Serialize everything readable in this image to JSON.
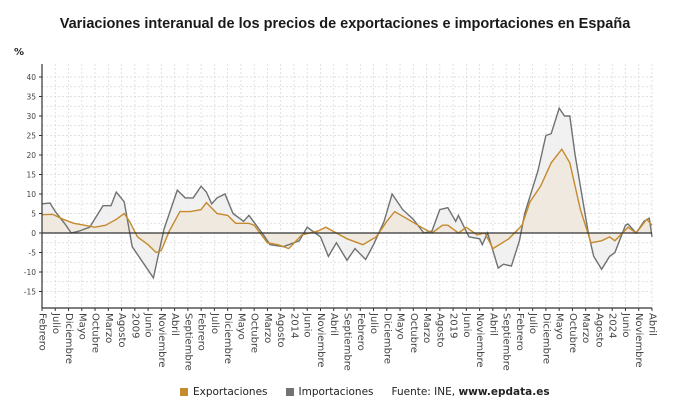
{
  "title": "Variaciones interanual de los precios de exportaciones e importaciones en España",
  "legend": {
    "source_prefix": "Fuente: INE, ",
    "source_site": "www.epdata.es"
  },
  "chart_data": {
    "type": "area",
    "title": "Variaciones interanual de los precios de exportaciones e importaciones en España",
    "ylabel": "%",
    "ylim": [
      -18,
      43
    ],
    "yticks": [
      40,
      35,
      30,
      25,
      20,
      15,
      10,
      5,
      0,
      -5,
      -10,
      -15
    ],
    "xlim": [
      "2006-02",
      "2025-04"
    ],
    "xtick_labels": [
      "Febrero",
      "Julio",
      "Diciembre",
      "Mayo",
      "Octubre",
      "Marzo",
      "Agosto",
      "2009",
      "Junio",
      "Noviembre",
      "Abril",
      "Septiembre",
      "Febrero",
      "Julio",
      "Diciembre",
      "Mayo",
      "Octubre",
      "Marzo",
      "Agosto",
      "2014",
      "Junio",
      "Noviembre",
      "Abril",
      "Septiembre",
      "Febrero",
      "Julio",
      "Diciembre",
      "Mayo",
      "Octubre",
      "Marzo",
      "Agosto",
      "2019",
      "Junio",
      "Noviembre",
      "Abril",
      "Septiembre",
      "Febrero",
      "Julio",
      "Diciembre",
      "Mayo",
      "Octubre",
      "Marzo",
      "Agosto",
      "2024",
      "Junio",
      "Noviembre",
      "Abril"
    ],
    "grid": true,
    "legend_position": "bottom",
    "series": [
      {
        "name": "Exportaciones",
        "color": "#c58a2e",
        "fill": "#efe8dc",
        "points": [
          [
            "2006-02",
            4.7
          ],
          [
            "2006-06",
            4.8
          ],
          [
            "2006-10",
            3.5
          ],
          [
            "2007-02",
            2.5
          ],
          [
            "2007-06",
            2
          ],
          [
            "2007-10",
            1.5
          ],
          [
            "2008-02",
            2
          ],
          [
            "2008-06",
            3.5
          ],
          [
            "2008-09",
            5
          ],
          [
            "2008-11",
            3
          ],
          [
            "2009-02",
            -1
          ],
          [
            "2009-06",
            -3
          ],
          [
            "2009-09",
            -5
          ],
          [
            "2009-11",
            -4.5
          ],
          [
            "2010-02",
            0.5
          ],
          [
            "2010-06",
            5.5
          ],
          [
            "2010-10",
            5.5
          ],
          [
            "2011-02",
            6
          ],
          [
            "2011-04",
            7.8
          ],
          [
            "2011-08",
            5
          ],
          [
            "2011-12",
            4.5
          ],
          [
            "2012-03",
            2.5
          ],
          [
            "2012-08",
            2.5
          ],
          [
            "2012-10",
            2
          ],
          [
            "2013-03",
            -2.5
          ],
          [
            "2013-07",
            -3
          ],
          [
            "2013-11",
            -4
          ],
          [
            "2014-04",
            -0.5
          ],
          [
            "2014-10",
            0.5
          ],
          [
            "2015-01",
            1.5
          ],
          [
            "2015-05",
            0
          ],
          [
            "2015-09",
            -1.5
          ],
          [
            "2016-03",
            -3
          ],
          [
            "2016-08",
            -1
          ],
          [
            "2016-12",
            3
          ],
          [
            "2017-03",
            5.5
          ],
          [
            "2017-08",
            3.5
          ],
          [
            "2018-01",
            1.5
          ],
          [
            "2018-05",
            0
          ],
          [
            "2018-09",
            2
          ],
          [
            "2018-11",
            2
          ],
          [
            "2019-03",
            0
          ],
          [
            "2019-06",
            1.5
          ],
          [
            "2019-10",
            -0.5
          ],
          [
            "2020-01",
            0
          ],
          [
            "2020-04",
            -4
          ],
          [
            "2020-10",
            -1.5
          ],
          [
            "2021-03",
            2
          ],
          [
            "2021-06",
            8
          ],
          [
            "2021-10",
            12
          ],
          [
            "2022-02",
            18
          ],
          [
            "2022-06",
            21.5
          ],
          [
            "2022-09",
            18
          ],
          [
            "2023-01",
            6
          ],
          [
            "2023-05",
            -2.5
          ],
          [
            "2023-09",
            -2
          ],
          [
            "2023-12",
            -1
          ],
          [
            "2024-02",
            -2
          ],
          [
            "2024-07",
            1.5
          ],
          [
            "2024-10",
            0
          ],
          [
            "2025-02",
            3.5
          ],
          [
            "2025-04",
            2
          ]
        ]
      },
      {
        "name": "Importaciones",
        "color": "#6e7270",
        "fill": "#efefef",
        "points": [
          [
            "2006-02",
            7.5
          ],
          [
            "2006-05",
            7.7
          ],
          [
            "2006-07",
            5.5
          ],
          [
            "2006-11",
            2
          ],
          [
            "2007-01",
            0
          ],
          [
            "2007-04",
            0.5
          ],
          [
            "2007-08",
            1.5
          ],
          [
            "2008-01",
            7
          ],
          [
            "2008-04",
            7
          ],
          [
            "2008-06",
            10.5
          ],
          [
            "2008-09",
            8
          ],
          [
            "2008-12",
            -3.5
          ],
          [
            "2009-04",
            -7.5
          ],
          [
            "2009-08",
            -11.5
          ],
          [
            "2009-12",
            1
          ],
          [
            "2010-05",
            11
          ],
          [
            "2010-08",
            9
          ],
          [
            "2010-11",
            9
          ],
          [
            "2011-02",
            12
          ],
          [
            "2011-04",
            10.5
          ],
          [
            "2011-06",
            7.5
          ],
          [
            "2011-08",
            9
          ],
          [
            "2011-11",
            10
          ],
          [
            "2012-02",
            5
          ],
          [
            "2012-06",
            3
          ],
          [
            "2012-08",
            4.5
          ],
          [
            "2013-01",
            0
          ],
          [
            "2013-04",
            -3
          ],
          [
            "2013-09",
            -3.5
          ],
          [
            "2014-03",
            -2
          ],
          [
            "2014-06",
            1.5
          ],
          [
            "2014-11",
            -1
          ],
          [
            "2015-02",
            -6
          ],
          [
            "2015-05",
            -2.5
          ],
          [
            "2015-09",
            -7
          ],
          [
            "2015-12",
            -4
          ],
          [
            "2016-04",
            -6.8
          ],
          [
            "2016-07",
            -3
          ],
          [
            "2016-11",
            3
          ],
          [
            "2017-02",
            10
          ],
          [
            "2017-06",
            6
          ],
          [
            "2017-10",
            3.5
          ],
          [
            "2018-02",
            0
          ],
          [
            "2018-05",
            0.5
          ],
          [
            "2018-08",
            6
          ],
          [
            "2018-11",
            6.5
          ],
          [
            "2019-02",
            3
          ],
          [
            "2019-03",
            4.5
          ],
          [
            "2019-07",
            -1
          ],
          [
            "2019-11",
            -1.5
          ],
          [
            "2019-12",
            -3
          ],
          [
            "2020-02",
            0
          ],
          [
            "2020-06",
            -9
          ],
          [
            "2020-08",
            -8
          ],
          [
            "2020-11",
            -8.5
          ],
          [
            "2021-02",
            -2
          ],
          [
            "2021-04",
            5
          ],
          [
            "2021-09",
            16
          ],
          [
            "2021-12",
            25
          ],
          [
            "2022-02",
            25.5
          ],
          [
            "2022-05",
            32
          ],
          [
            "2022-07",
            30
          ],
          [
            "2022-09",
            30
          ],
          [
            "2022-11",
            20
          ],
          [
            "2023-04",
            0
          ],
          [
            "2023-06",
            -6
          ],
          [
            "2023-09",
            -9.3
          ],
          [
            "2023-12",
            -6
          ],
          [
            "2024-02",
            -5
          ],
          [
            "2024-06",
            2
          ],
          [
            "2024-07",
            2.3
          ],
          [
            "2024-10",
            0
          ],
          [
            "2025-01",
            3
          ],
          [
            "2025-03",
            3.8
          ],
          [
            "2025-04",
            -1
          ]
        ]
      }
    ]
  }
}
